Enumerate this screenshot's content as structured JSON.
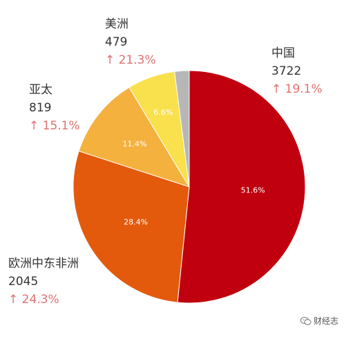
{
  "chart_data": {
    "type": "pie",
    "title": "",
    "start_angle_deg": 0,
    "direction": "clockwise",
    "slices": [
      {
        "label": "中国",
        "value": 3722,
        "percent_label": "51.6%",
        "growth": "↑ 19.1%",
        "color": "#c0000f"
      },
      {
        "label": "欧洲中东非洲",
        "value": 2045,
        "percent_label": "28.4%",
        "growth": "↑ 24.3%",
        "color": "#e35a0c"
      },
      {
        "label": "亚太",
        "value": 819,
        "percent_label": "11.4%",
        "growth": "↑ 15.1%",
        "color": "#f4b13e"
      },
      {
        "label": "美洲",
        "value": 479,
        "percent_label": "6.6%",
        "growth": "↑ 21.3%",
        "color": "#f9e04d"
      },
      {
        "label": "",
        "value": 146,
        "percent_label": "",
        "growth": "",
        "color": "#b7b7b7"
      }
    ]
  },
  "watermark": {
    "text": "财经志",
    "icon": "wechat-icon"
  }
}
